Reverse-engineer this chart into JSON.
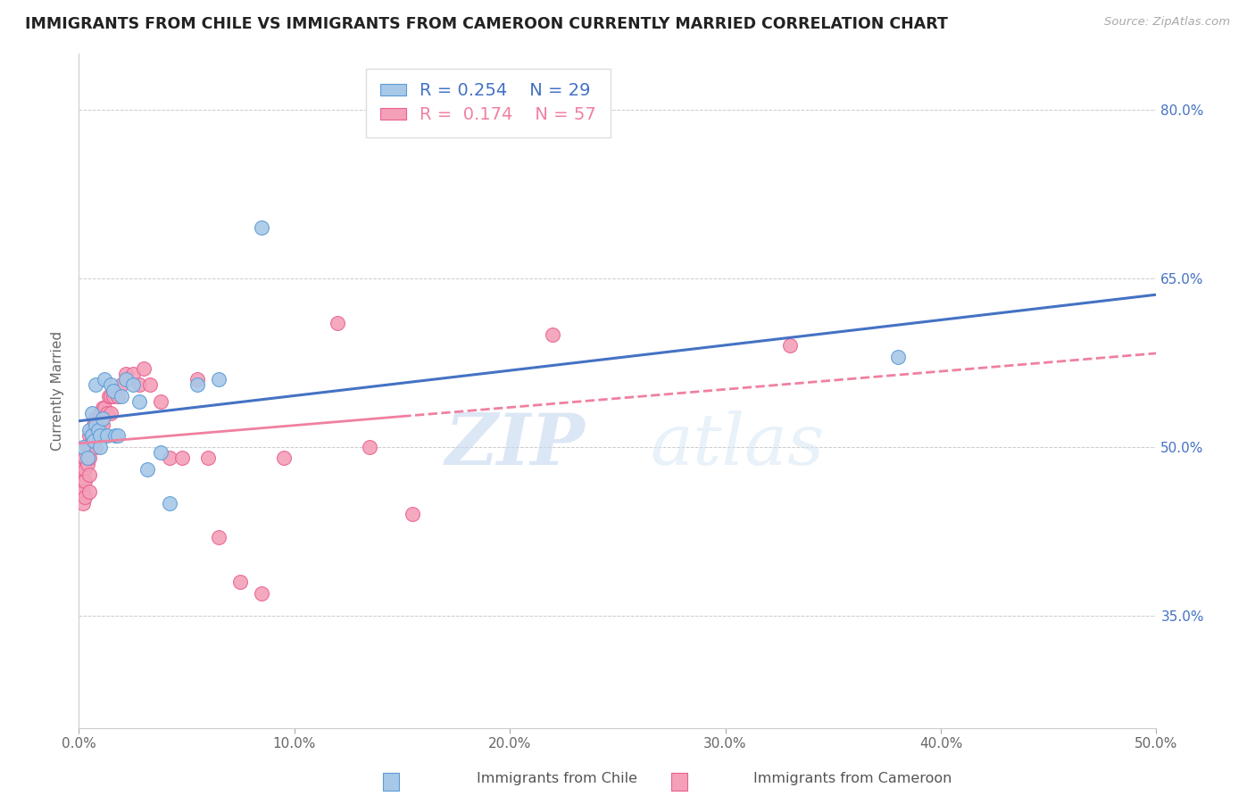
{
  "title": "IMMIGRANTS FROM CHILE VS IMMIGRANTS FROM CAMEROON CURRENTLY MARRIED CORRELATION CHART",
  "source": "Source: ZipAtlas.com",
  "ylabel": "Currently Married",
  "xlim": [
    0.0,
    0.5
  ],
  "ylim": [
    0.25,
    0.85
  ],
  "yticks": [
    0.35,
    0.5,
    0.65,
    0.8
  ],
  "ytick_labels": [
    "35.0%",
    "50.0%",
    "65.0%",
    "80.0%"
  ],
  "xticks": [
    0.0,
    0.1,
    0.2,
    0.3,
    0.4,
    0.5
  ],
  "xtick_labels": [
    "0.0%",
    "10.0%",
    "20.0%",
    "30.0%",
    "40.0%",
    "50.0%"
  ],
  "chile_color": "#a8c8e8",
  "cameroon_color": "#f4a0b8",
  "chile_edge_color": "#5b9bd5",
  "cameroon_edge_color": "#e86090",
  "chile_line_color": "#4472c4",
  "cameroon_line_color": "#f080a0",
  "right_axis_color": "#4472c4",
  "R_chile": 0.254,
  "N_chile": 29,
  "R_cameroon": 0.174,
  "N_cameroon": 57,
  "watermark_zip": "ZIP",
  "watermark_atlas": "atlas",
  "legend_label_chile": "Immigrants from Chile",
  "legend_label_cameroon": "Immigrants from Cameroon",
  "chile_x": [
    0.002,
    0.004,
    0.005,
    0.006,
    0.006,
    0.007,
    0.008,
    0.008,
    0.009,
    0.01,
    0.01,
    0.011,
    0.012,
    0.013,
    0.015,
    0.016,
    0.017,
    0.018,
    0.02,
    0.022,
    0.025,
    0.028,
    0.032,
    0.038,
    0.042,
    0.055,
    0.065,
    0.085,
    0.38
  ],
  "chile_y": [
    0.5,
    0.49,
    0.515,
    0.51,
    0.53,
    0.505,
    0.555,
    0.52,
    0.515,
    0.51,
    0.5,
    0.525,
    0.56,
    0.51,
    0.555,
    0.55,
    0.51,
    0.51,
    0.545,
    0.56,
    0.555,
    0.54,
    0.48,
    0.495,
    0.45,
    0.555,
    0.56,
    0.695,
    0.58
  ],
  "cameroon_x": [
    0.001,
    0.001,
    0.002,
    0.002,
    0.002,
    0.003,
    0.003,
    0.003,
    0.003,
    0.004,
    0.004,
    0.005,
    0.005,
    0.005,
    0.005,
    0.005,
    0.006,
    0.006,
    0.007,
    0.007,
    0.008,
    0.008,
    0.008,
    0.009,
    0.009,
    0.01,
    0.01,
    0.01,
    0.011,
    0.011,
    0.012,
    0.013,
    0.014,
    0.015,
    0.015,
    0.016,
    0.018,
    0.02,
    0.022,
    0.025,
    0.028,
    0.03,
    0.033,
    0.038,
    0.042,
    0.048,
    0.055,
    0.06,
    0.065,
    0.075,
    0.085,
    0.095,
    0.12,
    0.135,
    0.155,
    0.22,
    0.33
  ],
  "cameroon_y": [
    0.48,
    0.465,
    0.47,
    0.46,
    0.45,
    0.49,
    0.48,
    0.47,
    0.455,
    0.5,
    0.485,
    0.51,
    0.5,
    0.49,
    0.475,
    0.46,
    0.515,
    0.505,
    0.52,
    0.51,
    0.525,
    0.515,
    0.5,
    0.525,
    0.51,
    0.53,
    0.52,
    0.51,
    0.535,
    0.52,
    0.535,
    0.53,
    0.545,
    0.545,
    0.53,
    0.545,
    0.545,
    0.555,
    0.565,
    0.565,
    0.555,
    0.57,
    0.555,
    0.54,
    0.49,
    0.49,
    0.56,
    0.49,
    0.42,
    0.38,
    0.37,
    0.49,
    0.61,
    0.5,
    0.44,
    0.6,
    0.59
  ]
}
